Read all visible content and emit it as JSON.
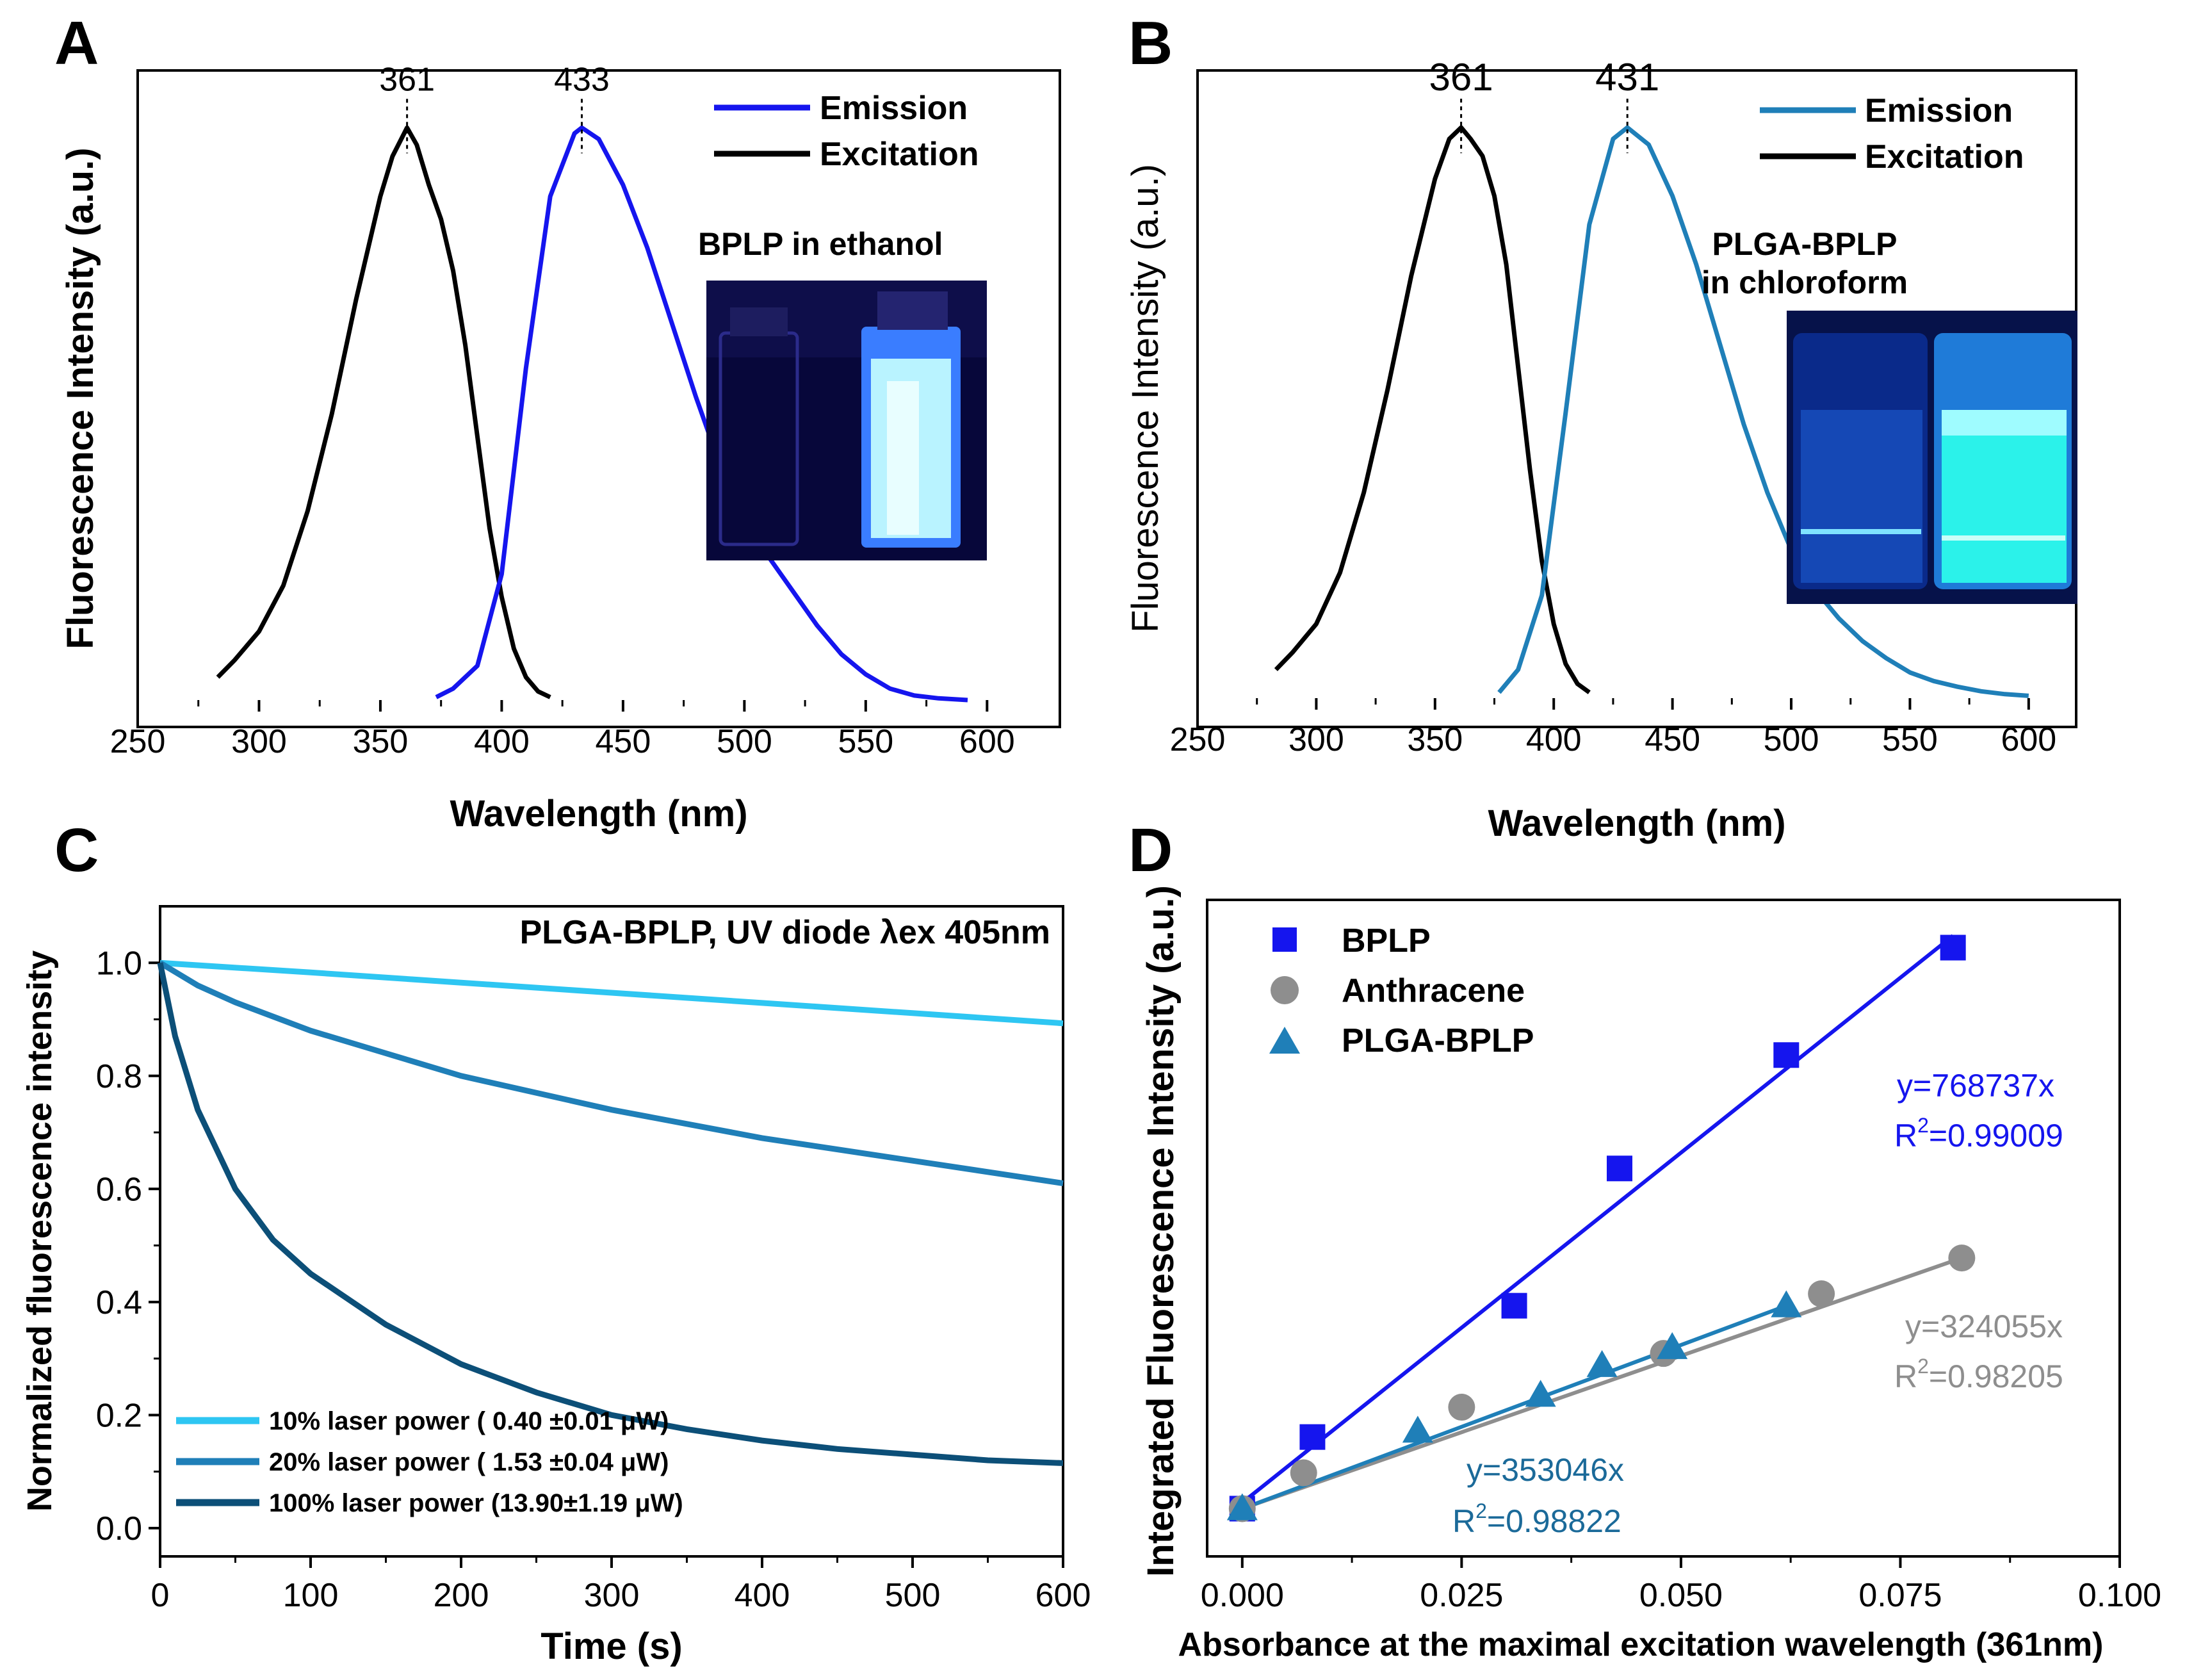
{
  "chart_data": [
    {
      "panel": "A",
      "type": "line",
      "xlabel": "Wavelength (nm)",
      "ylabel": "Fluorescence Intensity (a.u.)",
      "xlim": [
        250,
        630
      ],
      "ylim": [
        0,
        1.1
      ],
      "xticks": [
        "250",
        "300",
        "350",
        "400",
        "450",
        "500",
        "550",
        "600"
      ],
      "peak_labels": [
        "361",
        "433"
      ],
      "peaks": [
        361,
        433
      ],
      "inset_title": "BPLP in ethanol",
      "legend": [
        "Emission",
        "Excitation"
      ],
      "colors": {
        "emission": "#1515ee",
        "excitation": "#000000"
      },
      "series": [
        {
          "name": "Emission",
          "x": [
            373,
            380,
            390,
            400,
            410,
            420,
            430,
            433,
            440,
            450,
            460,
            470,
            480,
            490,
            500,
            510,
            520,
            530,
            540,
            550,
            560,
            570,
            580,
            592
          ],
          "y": [
            0.005,
            0.02,
            0.06,
            0.22,
            0.58,
            0.88,
            0.99,
            1.0,
            0.98,
            0.9,
            0.79,
            0.66,
            0.53,
            0.41,
            0.32,
            0.25,
            0.19,
            0.13,
            0.08,
            0.045,
            0.02,
            0.008,
            0.003,
            0.0
          ]
        },
        {
          "name": "Excitation",
          "x": [
            283,
            290,
            300,
            310,
            320,
            330,
            340,
            350,
            355,
            361,
            365,
            370,
            375,
            380,
            385,
            390,
            395,
            400,
            405,
            410,
            415,
            420
          ],
          "y": [
            0.04,
            0.07,
            0.12,
            0.2,
            0.33,
            0.5,
            0.7,
            0.88,
            0.95,
            1.0,
            0.97,
            0.9,
            0.84,
            0.75,
            0.62,
            0.46,
            0.3,
            0.18,
            0.09,
            0.04,
            0.015,
            0.005
          ]
        }
      ]
    },
    {
      "panel": "B",
      "type": "line",
      "xlabel": "Wavelength (nm)",
      "ylabel": "Fluorescence Intensity (a.u.)",
      "xlim": [
        250,
        620
      ],
      "ylim": [
        0,
        1.1
      ],
      "xticks": [
        "250",
        "300",
        "350",
        "400",
        "450",
        "500",
        "550",
        "600"
      ],
      "peak_labels": [
        "361",
        "431"
      ],
      "peaks": [
        361,
        431
      ],
      "inset_title_lines": [
        "PLGA-BPLP",
        "in chloroform"
      ],
      "legend": [
        "Emission",
        "Excitation"
      ],
      "colors": {
        "emission": "#1f7fb8",
        "excitation": "#000000"
      },
      "series": [
        {
          "name": "Emission",
          "x": [
            377,
            385,
            395,
            405,
            415,
            425,
            431,
            440,
            450,
            460,
            470,
            480,
            490,
            500,
            510,
            520,
            530,
            540,
            550,
            560,
            570,
            580,
            590,
            600
          ],
          "y": [
            0.01,
            0.05,
            0.18,
            0.5,
            0.83,
            0.98,
            1.0,
            0.97,
            0.88,
            0.76,
            0.62,
            0.48,
            0.36,
            0.26,
            0.19,
            0.14,
            0.1,
            0.07,
            0.045,
            0.03,
            0.02,
            0.012,
            0.007,
            0.004
          ]
        },
        {
          "name": "Excitation",
          "x": [
            283,
            290,
            300,
            310,
            320,
            330,
            340,
            350,
            356,
            361,
            365,
            370,
            375,
            380,
            385,
            390,
            395,
            400,
            405,
            410,
            415
          ],
          "y": [
            0.05,
            0.08,
            0.13,
            0.22,
            0.36,
            0.54,
            0.74,
            0.91,
            0.98,
            1.0,
            0.98,
            0.95,
            0.88,
            0.76,
            0.58,
            0.4,
            0.24,
            0.13,
            0.06,
            0.025,
            0.01
          ]
        }
      ]
    },
    {
      "panel": "C",
      "type": "line",
      "title": "PLGA-BPLP, UV diode λex 405nm",
      "xlabel": "Time (s)",
      "ylabel": "Normalized fluorescence intensity",
      "xlim": [
        0,
        600
      ],
      "ylim": [
        -0.05,
        1.1
      ],
      "xticks": [
        "0",
        "100",
        "200",
        "300",
        "400",
        "500",
        "600"
      ],
      "yticks": [
        "0.0",
        "0.2",
        "0.4",
        "0.6",
        "0.8",
        "1.0"
      ],
      "series": [
        {
          "name": "10%  laser power ( 0.40 ±0.01 μW)",
          "color": "#2ec6f2",
          "x": [
            0,
            100,
            200,
            300,
            400,
            500,
            600
          ],
          "y": [
            1.0,
            0.983,
            0.965,
            0.947,
            0.929,
            0.911,
            0.893
          ]
        },
        {
          "name": "20%  laser power ( 1.53 ±0.04 μW)",
          "color": "#1f7fb8",
          "x": [
            0,
            25,
            50,
            100,
            150,
            200,
            300,
            400,
            500,
            600
          ],
          "y": [
            1.0,
            0.96,
            0.93,
            0.88,
            0.84,
            0.8,
            0.74,
            0.69,
            0.65,
            0.61
          ]
        },
        {
          "name": "100% laser power (13.90±1.19 μW)",
          "color": "#0c4f78",
          "x": [
            0,
            10,
            25,
            50,
            75,
            100,
            150,
            200,
            250,
            300,
            350,
            400,
            450,
            500,
            550,
            600
          ],
          "y": [
            1.0,
            0.87,
            0.74,
            0.6,
            0.51,
            0.45,
            0.36,
            0.29,
            0.24,
            0.2,
            0.175,
            0.155,
            0.14,
            0.13,
            0.12,
            0.115
          ]
        }
      ]
    },
    {
      "panel": "D",
      "type": "scatter",
      "xlabel": "Absorbance at the maximal excitation wavelength (361nm)",
      "ylabel": "Integrated Fluorescence Intensity (a.u.)",
      "xlim": [
        -0.004,
        0.1
      ],
      "ylim": [
        -0.05,
        1.05
      ],
      "xticks": [
        "0.000",
        "0.025",
        "0.050",
        "0.075",
        "0.100"
      ],
      "series": [
        {
          "name": "BPLP",
          "color": "#1515ee",
          "marker": "square",
          "x": [
            0.0,
            0.008,
            0.031,
            0.043,
            0.062,
            0.081
          ],
          "y": [
            0.03,
            0.15,
            0.37,
            0.6,
            0.79,
            0.97
          ],
          "fit": {
            "x": [
              0.0,
              0.081
            ],
            "y": [
              0.04,
              0.99
            ]
          },
          "equation": "y=768737x",
          "r2_label": "R",
          "r2_value": "=0.99009"
        },
        {
          "name": "Anthracene",
          "color": "#8e8e8e",
          "marker": "circle",
          "x": [
            0.0,
            0.007,
            0.025,
            0.048,
            0.066,
            0.082
          ],
          "y": [
            0.03,
            0.09,
            0.2,
            0.29,
            0.39,
            0.45
          ],
          "fit": {
            "x": [
              0.0,
              0.082
            ],
            "y": [
              0.03,
              0.45
            ]
          },
          "equation": "y=324055x",
          "r2_label": "R",
          "r2_value": "=0.98205"
        },
        {
          "name": "PLGA-BPLP",
          "color": "#1f7fb8",
          "marker": "triangle",
          "x": [
            0.0,
            0.02,
            0.034,
            0.041,
            0.049,
            0.062
          ],
          "y": [
            0.03,
            0.16,
            0.22,
            0.27,
            0.3,
            0.37
          ],
          "fit": {
            "x": [
              0.0,
              0.062
            ],
            "y": [
              0.03,
              0.37
            ]
          },
          "equation": "y=353046x",
          "r2_label": "R",
          "r2_value": "=0.98822"
        }
      ]
    }
  ],
  "panel_labels": [
    "A",
    "B",
    "C",
    "D"
  ]
}
